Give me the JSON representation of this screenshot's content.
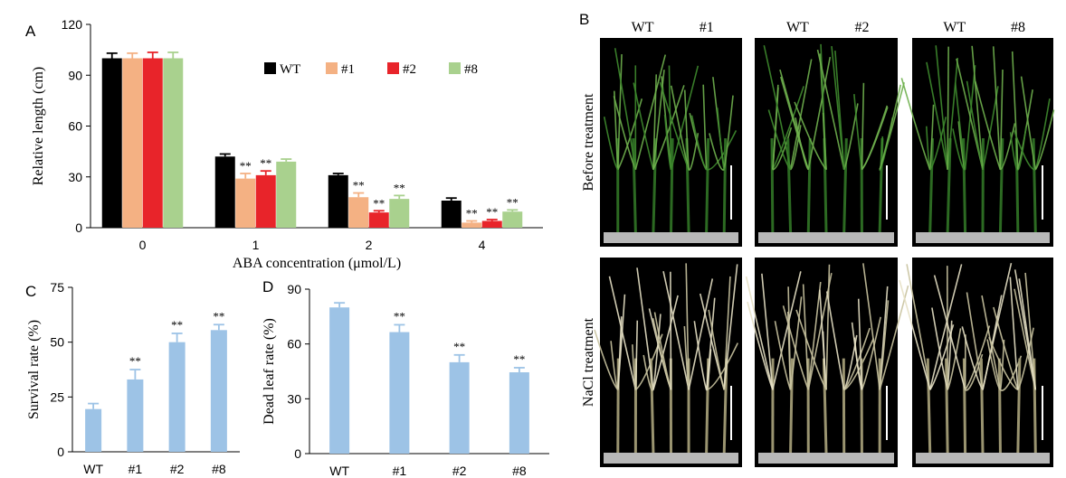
{
  "panels": {
    "A": "A",
    "B": "B",
    "C": "C",
    "D": "D"
  },
  "chart_data": [
    {
      "panel": "A",
      "type": "bar",
      "categories": [
        "0",
        "1",
        "2",
        "4"
      ],
      "series": [
        {
          "name": "WT",
          "color": "#000000",
          "values": [
            100,
            42,
            31,
            16
          ],
          "errors": [
            3,
            1.5,
            1,
            1.5
          ],
          "marks": [
            "",
            "",
            "",
            ""
          ]
        },
        {
          "name": "#1",
          "color": "#F4B183",
          "values": [
            100,
            29,
            18,
            3
          ],
          "errors": [
            3,
            3,
            2.5,
            1
          ],
          "marks": [
            "",
            "**",
            "**",
            "**"
          ]
        },
        {
          "name": "#2",
          "color": "#E8242A",
          "values": [
            100,
            31,
            9,
            4
          ],
          "errors": [
            3.5,
            2.5,
            1,
            0.8
          ],
          "marks": [
            "",
            "**",
            "**",
            "**"
          ]
        },
        {
          "name": "#8",
          "color": "#A9D18E",
          "values": [
            100,
            39,
            17,
            9.5
          ],
          "errors": [
            3.5,
            1.5,
            2,
            1
          ],
          "marks": [
            "",
            "",
            "**",
            "**"
          ]
        }
      ],
      "xlabel": "ABA concentration (μmol/L)",
      "ylabel": "Relative length (cm)",
      "ylim": [
        0,
        120
      ],
      "yticks": [
        "0",
        "30",
        "60",
        "90",
        "120"
      ],
      "legend_position": "top-right"
    },
    {
      "panel": "C",
      "type": "bar",
      "categories": [
        "WT",
        "#1",
        "#2",
        "#8"
      ],
      "values": [
        19.5,
        33,
        50,
        55.5
      ],
      "errors": [
        2.5,
        4.5,
        4,
        2.5
      ],
      "marks": [
        "",
        "**",
        "**",
        "**"
      ],
      "color": "#9DC3E6",
      "ylabel": "Survival rate (%)",
      "ylim": [
        0,
        75
      ],
      "yticks": [
        "0",
        "25",
        "50",
        "75"
      ]
    },
    {
      "panel": "D",
      "type": "bar",
      "categories": [
        "WT",
        "#1",
        "#2",
        "#8"
      ],
      "values": [
        80,
        66.5,
        50,
        44.5
      ],
      "errors": [
        2.5,
        4,
        4,
        2.5
      ],
      "marks": [
        "",
        "**",
        "**",
        "**"
      ],
      "color": "#9DC3E6",
      "ylabel": "Dead leaf rate (%)",
      "ylim": [
        0,
        90
      ],
      "yticks": [
        "0",
        "30",
        "60",
        "90"
      ]
    }
  ],
  "photo_panel": {
    "column_headers": [
      [
        "WT",
        "#1"
      ],
      [
        "WT",
        "#2"
      ],
      [
        "WT",
        "#8"
      ]
    ],
    "row_labels": [
      "Before treatment",
      "NaCl treatment"
    ],
    "leaf_color_before": "#3E8A2E",
    "leaf_color_nacl": "#C9C3A0",
    "background_color": "#000000"
  }
}
